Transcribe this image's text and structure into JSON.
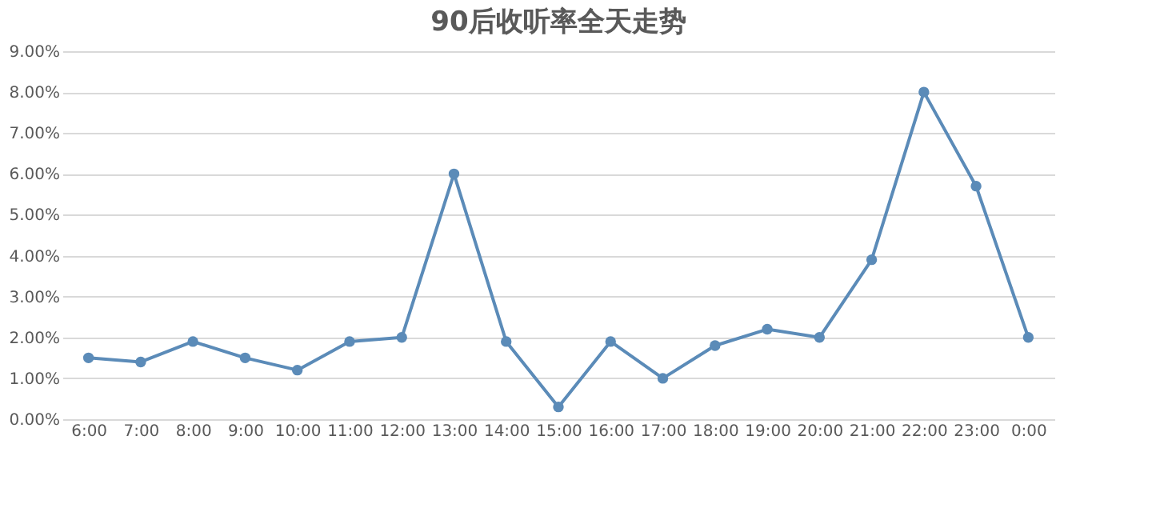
{
  "chart_data": {
    "type": "line",
    "title": "90后收听率全天走势",
    "categories": [
      "6:00",
      "7:00",
      "8:00",
      "9:00",
      "10:00",
      "11:00",
      "12:00",
      "13:00",
      "14:00",
      "15:00",
      "16:00",
      "17:00",
      "18:00",
      "19:00",
      "20:00",
      "21:00",
      "22:00",
      "23:00",
      "0:00"
    ],
    "series": [
      {
        "color": "#5b8bb8",
        "values": [
          1.5,
          1.4,
          1.9,
          1.5,
          1.2,
          1.9,
          2.0,
          6.0,
          1.9,
          0.3,
          1.9,
          1.0,
          1.8,
          2.2,
          2.0,
          3.9,
          8.0,
          5.7,
          2.0
        ]
      }
    ],
    "ylim": [
      0,
      9
    ],
    "yticks": [
      {
        "value": 0,
        "label": "0.00%"
      },
      {
        "value": 1,
        "label": "1.00%"
      },
      {
        "value": 2,
        "label": "2.00%"
      },
      {
        "value": 3,
        "label": "3.00%"
      },
      {
        "value": 4,
        "label": "4.00%"
      },
      {
        "value": 5,
        "label": "5.00%"
      },
      {
        "value": 6,
        "label": "6.00%"
      },
      {
        "value": 7,
        "label": "7.00%"
      },
      {
        "value": 8,
        "label": "8.00%"
      },
      {
        "value": 9,
        "label": "9.00%"
      }
    ],
    "grid": "y",
    "marker": "circle",
    "line_style": "solid",
    "legend": false
  }
}
